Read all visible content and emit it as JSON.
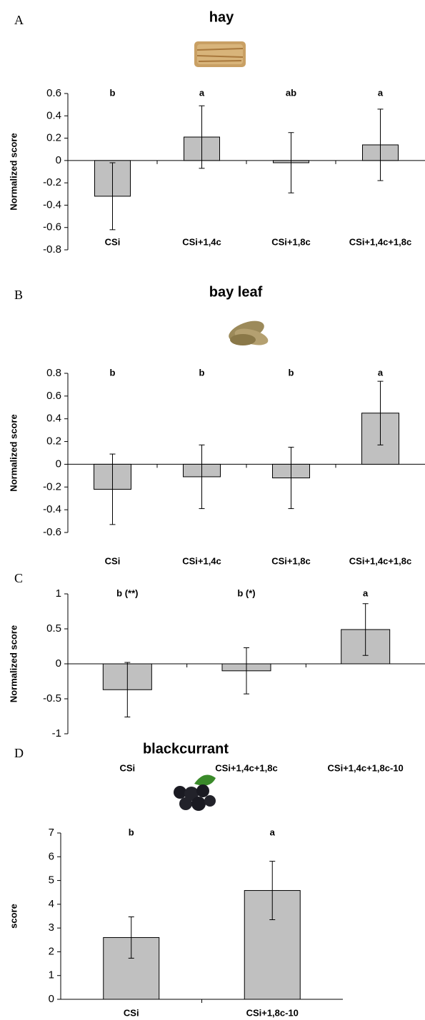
{
  "chart_data": [
    {
      "type": "bar",
      "panel": "A",
      "title": "hay",
      "y_label": "Normalized score",
      "categories": [
        "CSi",
        "CSi+1,4c",
        "CSi+1,8c",
        "CSi+1,4c+1,8c"
      ],
      "values": [
        -0.32,
        0.21,
        -0.02,
        0.14
      ],
      "errors": [
        0.3,
        0.28,
        0.27,
        0.32
      ],
      "significance": [
        "b",
        "a",
        "ab",
        "a"
      ],
      "color": "#c0c0c0",
      "ylim": [
        -0.8,
        0.6
      ],
      "yticks": [
        -0.8,
        -0.6,
        -0.4,
        -0.2,
        0,
        0.2,
        0.4,
        0.6
      ]
    },
    {
      "type": "bar",
      "panel": "B",
      "title": "bay leaf",
      "y_label": "Normalized score",
      "categories": [
        "CSi",
        "CSi+1,4c",
        "CSi+1,8c",
        "CSi+1,4c+1,8c"
      ],
      "values": [
        -0.22,
        -0.11,
        -0.12,
        0.45
      ],
      "errors": [
        0.31,
        0.28,
        0.27,
        0.28
      ],
      "significance": [
        "b",
        "b",
        "b",
        "a"
      ],
      "color": "#c0c0c0",
      "ylim": [
        -0.6,
        0.8
      ],
      "yticks": [
        -0.6,
        -0.4,
        -0.2,
        0,
        0.2,
        0.4,
        0.6,
        0.8
      ]
    },
    {
      "type": "bar",
      "panel": "C",
      "y_label": "Normalized score",
      "categories": [
        "CSi",
        "CSi+1,4c+1,8c",
        "CSi+1,4c+1,8c-10"
      ],
      "values": [
        -0.37,
        -0.1,
        0.49
      ],
      "errors": [
        0.39,
        0.33,
        0.37
      ],
      "significance": [
        "b (**)",
        "b (*)",
        "a"
      ],
      "color": "#c0c0c0",
      "ylim": [
        -1,
        1
      ],
      "yticks": [
        -1,
        -0.5,
        0,
        0.5,
        1
      ]
    },
    {
      "type": "bar",
      "panel": "D",
      "title": "blackcurrant",
      "y_label": "score",
      "categories": [
        "CSi",
        "CSi+1,8c-10"
      ],
      "values": [
        2.6,
        4.58
      ],
      "errors": [
        0.87,
        1.23
      ],
      "significance": [
        "b",
        "a"
      ],
      "color": "#c0c0c0",
      "ylim": [
        0,
        7
      ],
      "yticks": [
        0,
        1,
        2,
        3,
        4,
        5,
        6,
        7
      ]
    }
  ]
}
